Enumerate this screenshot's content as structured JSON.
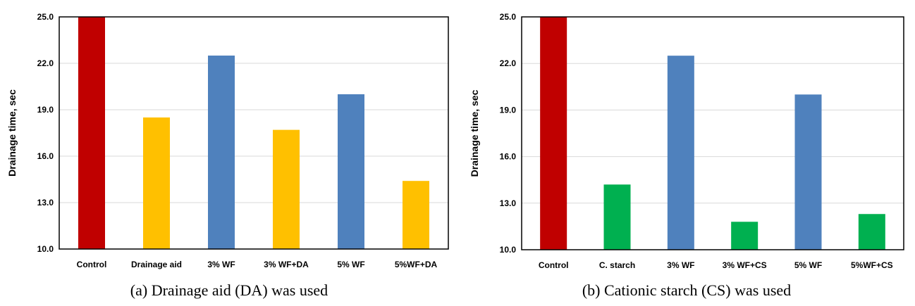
{
  "colors": {
    "control": "#c00000",
    "drainage_aid": "#ffc000",
    "wood_flour": "#4f81bd",
    "cationic_starch": "#00b050",
    "grid": "#d9d9d9",
    "frame": "#000000"
  },
  "chart_data": [
    {
      "type": "bar",
      "title": "",
      "caption": "(a) Drainage aid (DA) was used",
      "xlabel": "",
      "ylabel": "Drainage time, sec",
      "ylim": [
        10.0,
        25.0
      ],
      "yticks": [
        "10.0",
        "13.0",
        "16.0",
        "19.0",
        "22.0",
        "25.0"
      ],
      "grid": true,
      "categories": [
        "Control",
        "Drainage aid",
        "3% WF",
        "3% WF+DA",
        "5% WF",
        "5%WF+DA"
      ],
      "values": [
        25.0,
        18.5,
        22.5,
        17.7,
        20.0,
        14.4
      ],
      "bar_colors": [
        "#c00000",
        "#ffc000",
        "#4f81bd",
        "#ffc000",
        "#4f81bd",
        "#ffc000"
      ]
    },
    {
      "type": "bar",
      "title": "",
      "caption": "(b) Cationic starch (CS) was used",
      "xlabel": "",
      "ylabel": "Drainage time, sec",
      "ylim": [
        10.0,
        25.0
      ],
      "yticks": [
        "10.0",
        "13.0",
        "16.0",
        "19.0",
        "22.0",
        "25.0"
      ],
      "grid": true,
      "categories": [
        "Control",
        "C. starch",
        "3% WF",
        "3% WF+CS",
        "5% WF",
        "5%WF+CS"
      ],
      "values": [
        25.0,
        14.2,
        22.5,
        11.8,
        20.0,
        12.3
      ],
      "bar_colors": [
        "#c00000",
        "#00b050",
        "#4f81bd",
        "#00b050",
        "#4f81bd",
        "#00b050"
      ]
    }
  ]
}
